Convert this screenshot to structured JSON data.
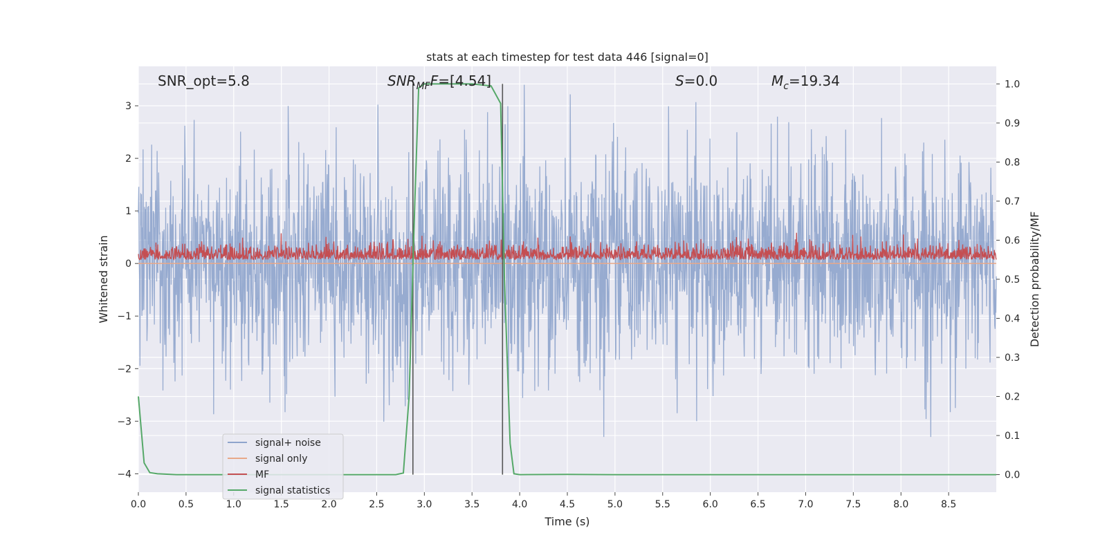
{
  "chart_data": {
    "type": "line",
    "title": "stats at each timestep for test data 446 [signal=0]",
    "xlabel": "Time (s)",
    "ylabel": "Whitened strain",
    "y2label": "Detection probability/MF",
    "xlim": [
      0,
      9.0
    ],
    "ylim": [
      -4.35,
      3.75
    ],
    "y2lim": [
      -0.045,
      1.045
    ],
    "x_ticks": [
      "0.0",
      "0.5",
      "1.0",
      "1.5",
      "2.0",
      "2.5",
      "3.0",
      "3.5",
      "4.0",
      "4.5",
      "5.0",
      "5.5",
      "6.0",
      "6.5",
      "7.0",
      "7.5",
      "8.0",
      "8.5"
    ],
    "y_ticks": [
      "3",
      "2",
      "1",
      "0",
      "−1",
      "−2",
      "−3",
      "−4"
    ],
    "y2_ticks": [
      "1.0",
      "0.9",
      "0.8",
      "0.7",
      "0.6",
      "0.5",
      "0.4",
      "0.3",
      "0.2",
      "0.1",
      "0.0"
    ],
    "annotations": {
      "snr_opt": "SNR_opt=5.8",
      "snr_mf_main": "SNR",
      "snr_mf_sub": "MF",
      "snr_mf_rest": "=[4.54]",
      "s_main": "S",
      "s_rest": "=0.0",
      "mc_main": "M",
      "mc_sub": "c",
      "mc_rest": "=19.34"
    },
    "vlines": [
      2.88,
      3.82
    ],
    "series": [
      {
        "name": "signal+ noise",
        "color": "#8ea4cc",
        "style": "noise",
        "amplitude_upper": 2.0,
        "amplitude_lower": -2.0
      },
      {
        "name": "signal only",
        "color": "#e8a888",
        "values": 0.0
      },
      {
        "name": "MF",
        "color": "#c44e52",
        "style": "mf_band",
        "baseline": 0.55,
        "top": 0.6
      },
      {
        "name": "signal statistics",
        "color": "#55a868",
        "axis": "right",
        "x": [
          0.0,
          0.06,
          0.12,
          0.2,
          0.4,
          1.0,
          2.0,
          2.7,
          2.78,
          2.84,
          2.9,
          2.94,
          3.0,
          3.5,
          3.7,
          3.8,
          3.84,
          3.9,
          3.94,
          4.0,
          4.5,
          5.0,
          6.0,
          7.0,
          8.0,
          9.0
        ],
        "values": [
          0.2,
          0.03,
          0.005,
          0.002,
          0.0,
          0.0,
          0.0,
          0.0,
          0.004,
          0.2,
          0.7,
          0.99,
          1.0,
          1.0,
          0.995,
          0.95,
          0.5,
          0.08,
          0.002,
          0.0,
          0.0005,
          0.0,
          0.0,
          0.0,
          0.0,
          0.0
        ]
      }
    ],
    "legend_position": "lower left"
  }
}
